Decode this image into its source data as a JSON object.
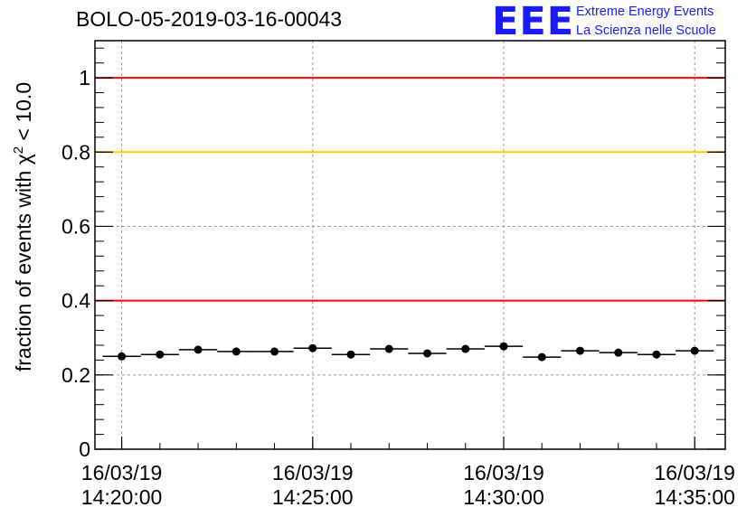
{
  "chart_data": {
    "type": "scatter",
    "title": "BOLO-05-2019-03-16-00043",
    "ylabel_parts": {
      "prefix": "fraction of events with ",
      "symbol": "χ",
      "superscript": "2",
      "suffix": " < 10.0"
    },
    "xlabel": "",
    "ylim": [
      0,
      1.1
    ],
    "yticks": [
      {
        "value": 0,
        "label": "0"
      },
      {
        "value": 0.2,
        "label": "0.2"
      },
      {
        "value": 0.4,
        "label": "0.4"
      },
      {
        "value": 0.6,
        "label": "0.6"
      },
      {
        "value": 0.8,
        "label": "0.8"
      },
      {
        "value": 1,
        "label": "1"
      }
    ],
    "xlim_minutes": [
      14.3,
      30.8
    ],
    "xticks": [
      {
        "minute": 15,
        "date": "16/03/19",
        "time": "14:20:00"
      },
      {
        "minute": 20,
        "date": "16/03/19",
        "time": "14:25:00"
      },
      {
        "minute": 25,
        "date": "16/03/19",
        "time": "14:30:00"
      },
      {
        "minute": 30,
        "date": "16/03/19",
        "time": "14:35:00"
      }
    ],
    "bin_width_minutes": 1,
    "points": [
      {
        "minute": 15,
        "value": 0.25
      },
      {
        "minute": 16,
        "value": 0.255
      },
      {
        "minute": 17,
        "value": 0.268
      },
      {
        "minute": 18,
        "value": 0.263
      },
      {
        "minute": 19,
        "value": 0.263
      },
      {
        "minute": 20,
        "value": 0.272
      },
      {
        "minute": 21,
        "value": 0.255
      },
      {
        "minute": 22,
        "value": 0.27
      },
      {
        "minute": 23,
        "value": 0.258
      },
      {
        "minute": 24,
        "value": 0.27
      },
      {
        "minute": 25,
        "value": 0.277
      },
      {
        "minute": 26,
        "value": 0.248
      },
      {
        "minute": 27,
        "value": 0.265
      },
      {
        "minute": 28,
        "value": 0.26
      },
      {
        "minute": 29,
        "value": 0.255
      },
      {
        "minute": 30,
        "value": 0.265
      }
    ],
    "reference_lines": [
      {
        "value": 1.0,
        "color": "#ff0000"
      },
      {
        "value": 0.8,
        "color": "#ffcc00"
      },
      {
        "value": 0.4,
        "color": "#ff0000"
      }
    ],
    "grid": true
  },
  "logo": {
    "mark": "EEE",
    "line1": "Extreme Energy Events",
    "line2": "La Scienza nelle Scuole",
    "color": "#1a1aff"
  }
}
